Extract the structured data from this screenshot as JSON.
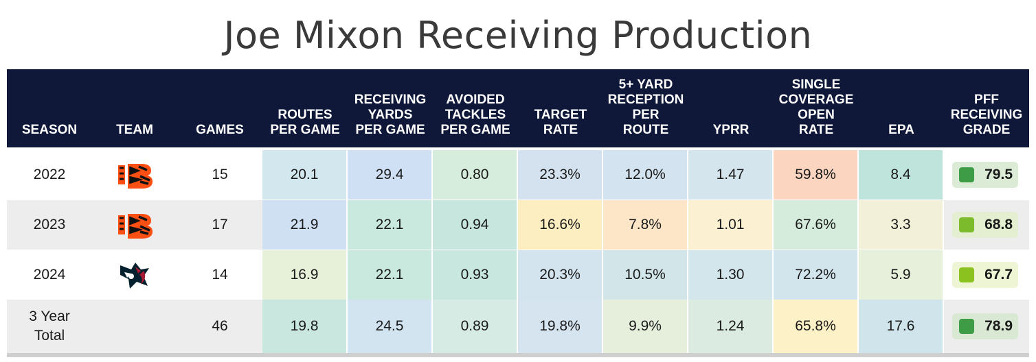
{
  "title": "Joe Mixon Receiving Production",
  "chart_data": {
    "type": "table",
    "columns": [
      {
        "key": "season",
        "label": "SEASON"
      },
      {
        "key": "team",
        "label": "TEAM"
      },
      {
        "key": "games",
        "label": "GAMES"
      },
      {
        "key": "routes",
        "label": "ROUTES\nPER GAME"
      },
      {
        "key": "recyds",
        "label": "RECEIVING\nYARDS\nPER GAME"
      },
      {
        "key": "avoided",
        "label": "AVOIDED\nTACKLES\nPER GAME"
      },
      {
        "key": "target",
        "label": "TARGET\nRATE"
      },
      {
        "key": "fiveplus",
        "label": "5+ YARD\nRECEPTION\nPER\nROUTE"
      },
      {
        "key": "yprr",
        "label": "YPRR"
      },
      {
        "key": "single",
        "label": "SINGLE\nCOVERAGE\nOPEN\nRATE"
      },
      {
        "key": "epa",
        "label": "EPA"
      },
      {
        "key": "grade",
        "label": "PFF\nRECEIVING\nGRADE"
      }
    ],
    "rows": [
      {
        "season": "2022",
        "team": "Bengals",
        "team_icon": "bengals-logo-icon",
        "games": "15",
        "routes": "20.1",
        "recyds": "29.4",
        "avoided": "0.80",
        "target": "23.3%",
        "fiveplus": "12.0%",
        "yprr": "1.47",
        "single": "59.8%",
        "epa": "8.4",
        "grade": "79.5"
      },
      {
        "season": "2023",
        "team": "Bengals",
        "team_icon": "bengals-logo-icon",
        "games": "17",
        "routes": "21.9",
        "recyds": "22.1",
        "avoided": "0.94",
        "target": "16.6%",
        "fiveplus": "7.8%",
        "yprr": "1.01",
        "single": "67.6%",
        "epa": "3.3",
        "grade": "68.8"
      },
      {
        "season": "2024",
        "team": "Texans",
        "team_icon": "texans-logo-icon",
        "games": "14",
        "routes": "16.9",
        "recyds": "22.1",
        "avoided": "0.93",
        "target": "20.3%",
        "fiveplus": "10.5%",
        "yprr": "1.30",
        "single": "72.2%",
        "epa": "5.9",
        "grade": "67.7"
      },
      {
        "season": "3 Year\nTotal",
        "team": "",
        "team_icon": "",
        "games": "46",
        "routes": "19.8",
        "recyds": "24.5",
        "avoided": "0.89",
        "target": "19.8%",
        "fiveplus": "9.9%",
        "yprr": "1.24",
        "single": "65.8%",
        "epa": "17.6",
        "grade": "78.9"
      }
    ],
    "heat_colors": [
      [
        "#d3e7ee",
        "#cfe0f4",
        "#d6ecdc",
        "#d3e2ee",
        "#d3e3ef",
        "#d4e5ee",
        "#fbd5c0",
        "#bfe4dc"
      ],
      [
        "#cfe0f3",
        "#c9e8de",
        "#c6e6de",
        "#fdeec2",
        "#fde5c8",
        "#fbf1d2",
        "#d5ecdc",
        "#f3f0da"
      ],
      [
        "#e7f0d8",
        "#c9e8de",
        "#c8e7df",
        "#d3e4ee",
        "#d2e6ea",
        "#d3e6ec",
        "#d2e4ec",
        "#e6f0da"
      ],
      [
        "#c9e6df",
        "#d1e4f0",
        "#d6ebe4",
        "#d6e4ef",
        "#e6efdc",
        "#dcebe2",
        "#fdf1c7",
        "#cfe5eb"
      ]
    ],
    "grade_colors": {
      "79.5": {
        "box": "#dcebd6",
        "square": "#3d9c45"
      },
      "68.8": {
        "box": "#e4efd1",
        "square": "#7bbb2c"
      },
      "67.7": {
        "box": "#edf5d4",
        "square": "#8bc21f"
      },
      "78.9": {
        "box": "#d9e8d3",
        "square": "#3d9c45"
      }
    },
    "header_color": "#0f1838",
    "row_stripe_color": "#ededed"
  }
}
